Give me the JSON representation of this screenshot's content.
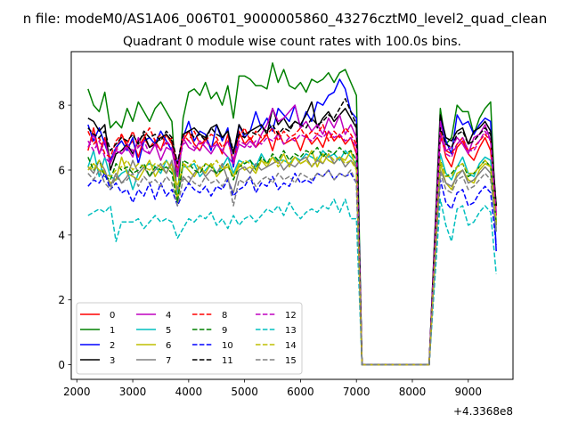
{
  "suptitle": "n file: modeM0/AS1A06_006T01_9000005860_43276cztM0_level2_quad_clean",
  "chart_data": {
    "type": "line",
    "title": "Quadrant 0 module wise count rates with 100.0s bins.",
    "xlabel": "",
    "ylabel": "",
    "x_offset_label": "+4.3368e8",
    "xlim": [
      1900,
      9800
    ],
    "ylim": [
      -0.45,
      9.65
    ],
    "x_ticks": [
      2000,
      3000,
      4000,
      5000,
      6000,
      7000,
      8000,
      9000
    ],
    "y_ticks": [
      0,
      2,
      4,
      6,
      8
    ],
    "grid": false,
    "legend_position": "lower-left",
    "gap_start": 7100,
    "gap_end": 8300,
    "x_pre": [
      2200,
      2300,
      2400,
      2500,
      2600,
      2700,
      2800,
      2900,
      3000,
      3100,
      3200,
      3300,
      3400,
      3500,
      3600,
      3700,
      3800,
      3900,
      4000,
      4100,
      4200,
      4300,
      4400,
      4500,
      4600,
      4700,
      4800,
      4900,
      5000,
      5100,
      5200,
      5300,
      5400,
      5500,
      5600,
      5700,
      5800,
      5900,
      6000,
      6100,
      6200,
      6300,
      6400,
      6500,
      6600,
      6700,
      6800,
      6900,
      7000
    ],
    "x_post": [
      8500,
      8600,
      8700,
      8800,
      8900,
      9000,
      9100,
      9200,
      9300,
      9400,
      9500
    ],
    "series": [
      {
        "name": "0",
        "color": "#ff0000",
        "dash": "solid",
        "pre": [
          6.6,
          7.3,
          6.5,
          7.0,
          6.3,
          6.6,
          7.1,
          6.7,
          6.9,
          6.4,
          7.0,
          6.7,
          6.9,
          6.6,
          7.1,
          6.8,
          6.2,
          6.9,
          7.2,
          6.8,
          6.6,
          7.0,
          6.7,
          6.9,
          6.5,
          7.1,
          6.1,
          7.2,
          6.8,
          7.0,
          6.7,
          6.9,
          7.1,
          6.6,
          7.2,
          6.8,
          6.9,
          7.0,
          6.6,
          7.1,
          6.8,
          7.0,
          6.7,
          7.2,
          6.9,
          7.1,
          6.8,
          7.0,
          6.5
        ],
        "post": [
          7.2,
          6.4,
          6.1,
          6.7,
          6.9,
          6.5,
          6.3,
          6.7,
          7.0,
          6.6,
          4.6
        ]
      },
      {
        "name": "1",
        "color": "#008000",
        "dash": "solid",
        "pre": [
          8.5,
          8.0,
          7.8,
          8.4,
          7.3,
          7.5,
          7.3,
          7.9,
          7.5,
          8.1,
          7.8,
          7.5,
          7.9,
          8.1,
          7.8,
          7.5,
          5.0,
          7.6,
          8.4,
          8.5,
          8.3,
          8.7,
          8.2,
          8.4,
          8.0,
          8.6,
          7.6,
          8.9,
          8.9,
          8.8,
          8.6,
          8.6,
          8.5,
          9.3,
          8.7,
          9.1,
          8.6,
          8.5,
          8.7,
          8.4,
          8.8,
          8.7,
          8.8,
          9.0,
          8.7,
          9.0,
          9.1,
          8.7,
          8.3
        ],
        "post": [
          7.9,
          6.8,
          7.0,
          8.0,
          7.8,
          7.8,
          7.1,
          7.6,
          7.9,
          8.1,
          4.3
        ]
      },
      {
        "name": "2",
        "color": "#0000ff",
        "dash": "solid",
        "pre": [
          7.4,
          6.9,
          7.3,
          6.8,
          6.3,
          6.7,
          6.9,
          6.6,
          7.0,
          6.2,
          6.9,
          7.0,
          6.8,
          7.2,
          6.9,
          6.6,
          6.2,
          7.0,
          7.5,
          6.9,
          7.2,
          7.1,
          6.6,
          7.4,
          6.9,
          7.3,
          6.1,
          7.4,
          7.0,
          7.2,
          7.8,
          7.3,
          7.6,
          7.2,
          7.9,
          7.7,
          7.5,
          8.0,
          7.3,
          7.8,
          7.5,
          8.1,
          8.0,
          8.3,
          8.4,
          8.8,
          8.5,
          7.8,
          7.6
        ],
        "post": [
          7.6,
          6.9,
          6.5,
          7.7,
          7.4,
          7.5,
          7.1,
          7.4,
          7.6,
          7.5,
          3.5
        ]
      },
      {
        "name": "3",
        "color": "#000000",
        "dash": "solid",
        "pre": [
          7.6,
          7.5,
          7.2,
          7.4,
          6.0,
          6.5,
          6.6,
          6.8,
          6.5,
          6.9,
          7.1,
          6.7,
          6.8,
          7.0,
          7.1,
          6.9,
          5.9,
          7.1,
          7.2,
          7.3,
          7.1,
          7.0,
          7.3,
          7.4,
          7.0,
          7.2,
          6.5,
          7.4,
          7.1,
          7.2,
          7.3,
          7.4,
          7.1,
          7.9,
          7.4,
          7.6,
          7.3,
          7.5,
          7.4,
          7.7,
          8.1,
          7.3,
          7.6,
          7.8,
          7.5,
          7.7,
          7.9,
          7.6,
          7.3
        ],
        "post": [
          7.7,
          7.0,
          6.9,
          7.2,
          7.3,
          6.8,
          7.2,
          7.3,
          7.5,
          7.2,
          4.9
        ]
      },
      {
        "name": "4",
        "color": "#bf00bf",
        "dash": "solid",
        "pre": [
          6.7,
          7.1,
          6.5,
          6.9,
          6.2,
          6.6,
          6.5,
          6.7,
          6.4,
          7.0,
          6.6,
          6.5,
          6.8,
          6.3,
          6.7,
          6.6,
          5.8,
          7.0,
          6.7,
          6.6,
          6.9,
          6.7,
          6.5,
          6.8,
          6.6,
          6.4,
          6.2,
          6.8,
          6.7,
          6.9,
          6.7,
          7.1,
          7.4,
          7.9,
          7.5,
          7.6,
          7.8,
          8.0,
          7.3,
          7.5,
          7.2,
          7.4,
          7.1,
          7.6,
          7.3,
          7.7,
          7.1,
          7.4,
          7.0
        ],
        "post": [
          7.5,
          6.6,
          6.7,
          7.0,
          6.8,
          6.5,
          7.0,
          7.1,
          7.4,
          6.9,
          4.7
        ]
      },
      {
        "name": "5",
        "color": "#00bfbf",
        "dash": "solid",
        "pre": [
          6.1,
          6.6,
          5.8,
          6.4,
          5.8,
          5.7,
          5.9,
          6.0,
          5.4,
          5.9,
          6.1,
          6.2,
          6.1,
          5.9,
          6.3,
          6.0,
          5.3,
          6.1,
          6.1,
          6.2,
          5.8,
          6.0,
          6.2,
          5.9,
          6.1,
          6.4,
          5.9,
          6.3,
          6.2,
          6.3,
          6.1,
          6.5,
          6.2,
          6.4,
          6.3,
          6.3,
          6.2,
          6.4,
          6.3,
          6.5,
          6.4,
          6.3,
          6.6,
          6.4,
          6.5,
          6.3,
          6.6,
          6.4,
          6.2
        ],
        "post": [
          6.5,
          5.9,
          5.7,
          6.1,
          6.4,
          5.9,
          5.8,
          6.2,
          6.4,
          6.3,
          4.1
        ]
      },
      {
        "name": "6",
        "color": "#bfbf00",
        "dash": "solid",
        "pre": [
          6.0,
          6.2,
          6.0,
          5.9,
          5.6,
          5.7,
          6.4,
          5.9,
          5.8,
          5.7,
          6.0,
          6.3,
          5.8,
          6.1,
          5.9,
          6.2,
          5.1,
          6.2,
          6.0,
          5.8,
          6.1,
          5.9,
          6.2,
          5.8,
          6.0,
          6.1,
          5.8,
          6.2,
          6.0,
          6.1,
          5.9,
          6.3,
          6.1,
          6.4,
          6.2,
          6.5,
          6.1,
          6.4,
          6.2,
          6.3,
          6.6,
          6.1,
          6.5,
          6.3,
          6.2,
          6.4,
          6.3,
          6.6,
          6.0
        ],
        "post": [
          6.2,
          5.6,
          5.4,
          5.9,
          6.0,
          5.7,
          5.6,
          6.0,
          6.2,
          6.1,
          4.3
        ]
      },
      {
        "name": "7",
        "color": "#808080",
        "dash": "solid",
        "pre": [
          6.1,
          5.9,
          6.3,
          6.0,
          5.5,
          5.9,
          5.6,
          5.8,
          6.3,
          5.9,
          6.1,
          5.8,
          6.0,
          6.2,
          5.9,
          6.3,
          5.4,
          5.8,
          5.6,
          5.9,
          6.1,
          5.8,
          6.0,
          5.9,
          6.2,
          5.7,
          5.3,
          6.0,
          6.1,
          5.9,
          6.2,
          6.0,
          6.1,
          6.2,
          6.3,
          6.0,
          6.2,
          6.1,
          6.3,
          6.4,
          6.1,
          6.3,
          6.2,
          6.5,
          6.2,
          6.4,
          6.1,
          6.3,
          6.1
        ],
        "post": [
          6.0,
          5.6,
          5.5,
          5.8,
          6.0,
          5.6,
          5.7,
          5.9,
          6.1,
          5.9,
          4.2
        ]
      },
      {
        "name": "8",
        "color": "#ff0000",
        "dash": "dashed",
        "pre": [
          7.2,
          6.8,
          7.0,
          6.5,
          6.4,
          6.9,
          7.1,
          6.8,
          7.2,
          6.7,
          7.0,
          7.3,
          6.9,
          7.1,
          6.8,
          7.0,
          6.0,
          7.1,
          6.9,
          7.2,
          6.8,
          6.9,
          7.1,
          7.0,
          6.7,
          6.9,
          6.3,
          7.0,
          7.3,
          6.9,
          7.2,
          7.0,
          7.1,
          7.3,
          6.9,
          7.2,
          7.0,
          7.1,
          7.3,
          7.0,
          7.2,
          7.1,
          7.4,
          6.9,
          7.2,
          7.0,
          7.3,
          7.1,
          6.8
        ],
        "post": [
          7.0,
          6.6,
          6.5,
          6.8,
          7.0,
          6.6,
          6.7,
          6.9,
          7.1,
          6.9,
          4.8
        ]
      },
      {
        "name": "9",
        "color": "#008000",
        "dash": "dashed",
        "pre": [
          6.4,
          6.0,
          6.3,
          5.8,
          5.7,
          6.2,
          6.0,
          6.1,
          5.9,
          6.0,
          6.2,
          5.8,
          6.1,
          6.0,
          6.1,
          5.9,
          5.0,
          6.3,
          6.2,
          6.0,
          5.9,
          6.2,
          6.1,
          5.9,
          6.0,
          6.2,
          5.7,
          6.1,
          6.2,
          6.3,
          6.0,
          6.4,
          6.2,
          6.5,
          6.3,
          6.6,
          6.3,
          6.5,
          6.4,
          6.6,
          6.5,
          6.7,
          6.4,
          6.6,
          6.5,
          6.7,
          6.5,
          6.6,
          6.3
        ],
        "post": [
          6.3,
          5.8,
          5.9,
          6.1,
          6.2,
          5.8,
          5.9,
          6.1,
          6.3,
          6.1,
          4.4
        ]
      },
      {
        "name": "10",
        "color": "#0000ff",
        "dash": "dashed",
        "pre": [
          5.5,
          5.7,
          5.6,
          5.9,
          5.4,
          5.6,
          5.3,
          5.4,
          5.0,
          5.4,
          5.2,
          5.6,
          5.1,
          5.6,
          5.2,
          5.4,
          4.9,
          5.3,
          5.6,
          5.4,
          5.3,
          5.5,
          5.2,
          5.5,
          5.4,
          5.7,
          5.2,
          5.4,
          5.5,
          5.8,
          5.3,
          5.6,
          5.5,
          5.8,
          5.4,
          5.6,
          5.5,
          5.9,
          5.6,
          5.7,
          5.6,
          5.9,
          5.8,
          6.0,
          5.7,
          5.9,
          5.8,
          5.9,
          5.6
        ],
        "post": [
          5.7,
          5.0,
          4.8,
          5.3,
          5.4,
          4.9,
          5.0,
          5.3,
          5.5,
          5.3,
          3.7
        ]
      },
      {
        "name": "11",
        "color": "#000000",
        "dash": "dashed",
        "pre": [
          7.3,
          7.1,
          7.0,
          7.2,
          6.6,
          6.8,
          7.0,
          6.9,
          7.1,
          6.8,
          7.2,
          7.0,
          7.1,
          6.9,
          7.2,
          7.0,
          6.2,
          7.1,
          7.2,
          7.0,
          7.1,
          6.9,
          7.3,
          7.1,
          7.0,
          7.2,
          6.6,
          7.1,
          7.0,
          7.2,
          7.1,
          7.3,
          7.2,
          7.4,
          7.1,
          7.3,
          7.2,
          7.5,
          7.4,
          7.3,
          7.6,
          7.4,
          7.5,
          7.7,
          7.6,
          7.9,
          8.2,
          7.8,
          7.4
        ],
        "post": [
          7.3,
          6.8,
          6.7,
          7.1,
          7.2,
          6.8,
          6.9,
          7.1,
          7.3,
          7.1,
          4.9
        ]
      },
      {
        "name": "12",
        "color": "#bf00bf",
        "dash": "dashed",
        "pre": [
          6.9,
          6.6,
          6.9,
          6.4,
          6.2,
          6.7,
          6.5,
          6.8,
          6.6,
          6.7,
          6.9,
          6.5,
          6.8,
          6.6,
          6.9,
          6.7,
          6.0,
          6.8,
          6.9,
          6.7,
          6.6,
          6.9,
          6.7,
          6.8,
          6.6,
          6.9,
          6.3,
          6.9,
          6.8,
          6.7,
          6.9,
          6.8,
          7.0,
          6.9,
          7.1,
          6.8,
          7.0,
          6.9,
          7.1,
          7.0,
          6.9,
          7.1,
          7.0,
          7.2,
          7.0,
          7.1,
          6.9,
          7.0,
          6.7
        ],
        "post": [
          7.1,
          6.5,
          6.4,
          6.8,
          7.0,
          6.6,
          6.6,
          6.9,
          7.2,
          6.9,
          4.6
        ]
      },
      {
        "name": "13",
        "color": "#00bfbf",
        "dash": "dashed",
        "pre": [
          4.6,
          4.7,
          4.8,
          4.7,
          4.9,
          3.8,
          4.4,
          4.4,
          4.4,
          4.5,
          4.2,
          4.4,
          4.6,
          4.4,
          4.5,
          4.4,
          3.9,
          4.2,
          4.5,
          4.4,
          4.6,
          4.5,
          4.7,
          4.3,
          4.5,
          4.2,
          4.6,
          4.3,
          4.5,
          4.6,
          4.4,
          4.6,
          4.8,
          4.7,
          4.9,
          4.6,
          5.0,
          4.7,
          4.5,
          4.7,
          4.8,
          4.7,
          4.9,
          4.8,
          5.1,
          4.7,
          5.1,
          4.5,
          4.5
        ],
        "post": [
          5.1,
          4.3,
          3.8,
          4.8,
          4.9,
          4.3,
          4.4,
          4.7,
          4.9,
          4.7,
          2.8
        ]
      },
      {
        "name": "14",
        "color": "#bfbf00",
        "dash": "dashed",
        "pre": [
          6.1,
          6.0,
          6.3,
          5.9,
          5.8,
          6.0,
          6.1,
          6.3,
          6.0,
          6.2,
          6.1,
          6.0,
          6.2,
          6.1,
          6.3,
          6.0,
          5.5,
          6.2,
          6.1,
          6.3,
          6.0,
          6.2,
          6.1,
          6.3,
          6.0,
          6.2,
          5.8,
          6.1,
          6.3,
          6.2,
          6.0,
          6.3,
          6.2,
          6.4,
          6.1,
          6.3,
          6.2,
          6.4,
          6.2,
          6.3,
          6.1,
          6.4,
          6.2,
          6.5,
          6.3,
          6.4,
          6.2,
          6.3,
          6.0
        ],
        "post": [
          6.3,
          5.8,
          5.8,
          6.1,
          6.2,
          5.9,
          5.9,
          6.1,
          6.3,
          6.1,
          4.4
        ]
      },
      {
        "name": "15",
        "color": "#808080",
        "dash": "dashed",
        "pre": [
          5.9,
          5.7,
          6.0,
          5.6,
          5.4,
          5.8,
          5.6,
          5.7,
          5.9,
          5.5,
          5.8,
          5.6,
          5.7,
          5.5,
          5.8,
          5.6,
          4.9,
          5.7,
          5.8,
          5.6,
          5.5,
          5.8,
          5.6,
          5.7,
          5.5,
          5.8,
          4.9,
          5.7,
          5.6,
          5.8,
          5.5,
          5.7,
          5.8,
          5.6,
          5.9,
          5.7,
          5.8,
          5.6,
          5.9,
          5.8,
          5.7,
          5.9,
          5.8,
          6.0,
          5.7,
          5.9,
          5.8,
          6.0,
          5.6
        ],
        "post": [
          5.9,
          5.4,
          5.3,
          5.7,
          5.8,
          5.4,
          5.5,
          5.7,
          5.9,
          5.7,
          4.1
        ]
      }
    ]
  }
}
